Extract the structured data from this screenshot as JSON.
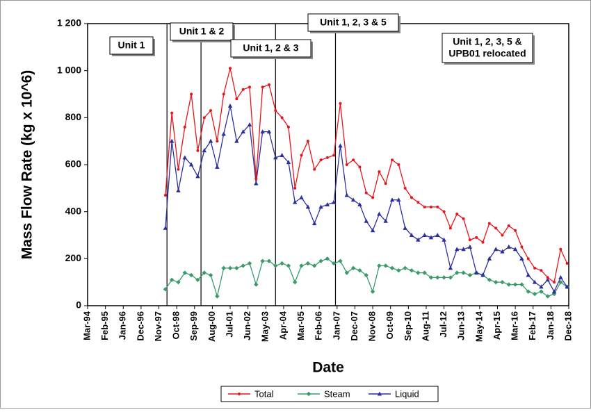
{
  "chart_data": {
    "type": "line",
    "y_label": "Mass Flow Rate (kg x 10^6)",
    "x_label": "Date",
    "x": [
      "Mar-98",
      "Jul-98",
      "Nov-98",
      "Mar-99",
      "Jul-99",
      "Nov-99",
      "Mar-00",
      "Jul-00",
      "Nov-00",
      "Mar-01",
      "Jul-01",
      "Nov-01",
      "Mar-02",
      "Jul-02",
      "Nov-02",
      "Mar-03",
      "Jul-03",
      "Nov-03",
      "Mar-04",
      "Jul-04",
      "Nov-04",
      "Mar-05",
      "Jul-05",
      "Nov-05",
      "Mar-06",
      "Jul-06",
      "Nov-06",
      "Mar-07",
      "Jul-07",
      "Nov-07",
      "Mar-08",
      "Jul-08",
      "Nov-08",
      "Mar-09",
      "Jul-09",
      "Nov-09",
      "Mar-10",
      "Jul-10",
      "Nov-10",
      "Mar-11",
      "Jul-11",
      "Nov-11",
      "Mar-12",
      "Jul-12",
      "Nov-12",
      "Mar-13",
      "Jul-13",
      "Nov-13",
      "Mar-14",
      "Jul-14",
      "Nov-14",
      "Mar-15",
      "Jul-15",
      "Nov-15",
      "Mar-16",
      "Jul-16",
      "Nov-16",
      "Mar-17",
      "Jul-17",
      "Nov-17",
      "Mar-18",
      "Jul-18",
      "Nov-18"
    ],
    "series": [
      {
        "name": "Total",
        "color": "#e8141b",
        "marker": "circle",
        "values": [
          470,
          820,
          580,
          760,
          900,
          660,
          800,
          830,
          700,
          900,
          1010,
          880,
          920,
          930,
          540,
          930,
          940,
          830,
          800,
          760,
          500,
          640,
          700,
          580,
          620,
          630,
          640,
          860,
          600,
          620,
          590,
          480,
          460,
          570,
          520,
          620,
          600,
          500,
          460,
          440,
          420,
          420,
          420,
          400,
          330,
          390,
          370,
          280,
          290,
          270,
          350,
          330,
          300,
          340,
          320,
          250,
          200,
          160,
          150,
          120,
          100,
          240,
          180
        ]
      },
      {
        "name": "Steam",
        "color": "#3a9a6a",
        "marker": "diamond",
        "values": [
          70,
          110,
          100,
          140,
          130,
          110,
          140,
          130,
          40,
          160,
          160,
          160,
          170,
          180,
          90,
          190,
          190,
          170,
          180,
          170,
          100,
          170,
          180,
          170,
          190,
          200,
          180,
          190,
          140,
          160,
          150,
          130,
          60,
          170,
          170,
          160,
          150,
          160,
          150,
          140,
          140,
          120,
          120,
          120,
          120,
          140,
          140,
          130,
          140,
          130,
          110,
          100,
          100,
          90,
          90,
          90,
          60,
          50,
          60,
          40,
          50,
          100,
          80
        ]
      },
      {
        "name": "Liquid",
        "color": "#2b2f9e",
        "marker": "triangle",
        "values": [
          330,
          700,
          490,
          630,
          600,
          550,
          660,
          700,
          590,
          730,
          850,
          700,
          740,
          770,
          520,
          740,
          740,
          630,
          640,
          610,
          440,
          460,
          420,
          350,
          420,
          430,
          440,
          680,
          470,
          450,
          430,
          360,
          320,
          390,
          360,
          450,
          450,
          330,
          300,
          280,
          300,
          290,
          300,
          280,
          160,
          240,
          240,
          250,
          140,
          130,
          200,
          240,
          230,
          250,
          240,
          200,
          130,
          100,
          80,
          110,
          60,
          120,
          80
        ]
      }
    ],
    "xlim": [
      "Mar-94",
      "Dec-18"
    ],
    "xticks": [
      "Mar-94",
      "Feb-95",
      "Jan-96",
      "Dec-96",
      "Nov-97",
      "Oct-98",
      "Sep-99",
      "Aug-00",
      "Jul-01",
      "Jun-02",
      "May-03",
      "Apr-04",
      "Mar-05",
      "Feb-06",
      "Jan-07",
      "Dec-07",
      "Nov-08",
      "Oct-09",
      "Sep-10",
      "Aug-11",
      "Jul-12",
      "Jun-13",
      "May-14",
      "Apr-15",
      "Mar-16",
      "Feb-17",
      "Jan-18",
      "Dec-18"
    ],
    "ylim": [
      0,
      1200
    ],
    "yticks": [
      0,
      200,
      400,
      600,
      800,
      {
        "value": 1000,
        "label": "1 000"
      },
      {
        "value": 1200,
        "label": "1 200"
      }
    ],
    "event_lines": [
      "Apr-98",
      "Jan-00",
      "Nov-03",
      "Dec-06"
    ],
    "annotations": [
      [
        "Unit 1"
      ],
      [
        "Unit 1 & 2"
      ],
      [
        "Unit 1, 2 & 3"
      ],
      [
        "Unit 1, 2, 3 & 5"
      ],
      [
        "Unit 1, 2, 3, 5 &",
        "UPB01 relocated"
      ]
    ],
    "legend": "bottom"
  }
}
